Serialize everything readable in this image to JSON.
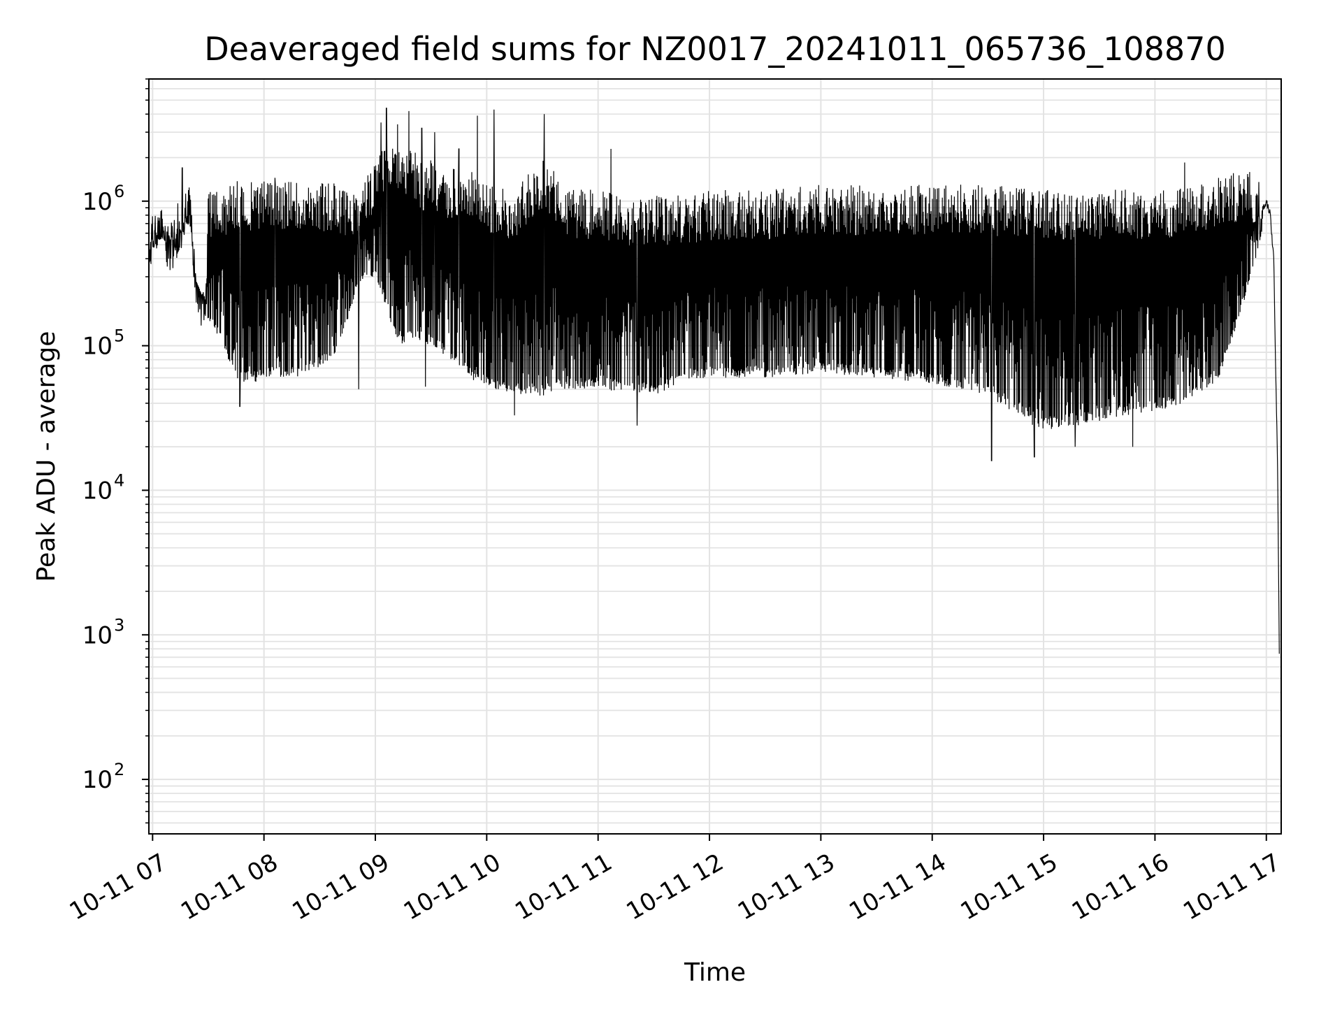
{
  "chart_data": {
    "type": "line",
    "title": "Deaveraged field sums for NZ0017_20241011_065736_108870",
    "xlabel": "Time",
    "ylabel": "Peak ADU - average",
    "yscale": "log",
    "ylim": [
      42,
      7000000
    ],
    "xlim": [
      "2024-10-11 06:58",
      "2024-10-11 17:08"
    ],
    "grid": true,
    "x_tick_labels": [
      "10-11 07",
      "10-11 08",
      "10-11 09",
      "10-11 10",
      "10-11 11",
      "10-11 12",
      "10-11 13",
      "10-11 14",
      "10-11 15",
      "10-11 16",
      "10-11 17"
    ],
    "x_ticks": [
      "2024-10-11 07:00",
      "2024-10-11 08:00",
      "2024-10-11 09:00",
      "2024-10-11 10:00",
      "2024-10-11 11:00",
      "2024-10-11 12:00",
      "2024-10-11 13:00",
      "2024-10-11 14:00",
      "2024-10-11 15:00",
      "2024-10-11 16:00",
      "2024-10-11 17:00"
    ],
    "y_ticks": [
      {
        "value": 100,
        "base": "10",
        "exp": "2"
      },
      {
        "value": 1000,
        "base": "10",
        "exp": "3"
      },
      {
        "value": 10000,
        "base": "10",
        "exp": "4"
      },
      {
        "value": 100000,
        "base": "10",
        "exp": "5"
      },
      {
        "value": 1000000,
        "base": "10",
        "exp": "6"
      }
    ],
    "line_color": "#000000",
    "grid_color": "#e3e3e3",
    "series": [
      {
        "x": [
          "2024-10-11 06:58",
          "2024-10-11 07:02",
          "2024-10-11 07:05",
          "2024-10-11 07:08",
          "2024-10-11 07:11",
          "2024-10-11 07:13",
          "2024-10-11 07:15",
          "2024-10-11 07:18",
          "2024-10-11 07:21",
          "2024-10-11 07:22",
          "2024-10-11 07:25",
          "2024-10-11 07:28",
          "2024-10-11 07:30",
          "2024-10-11 07:35",
          "2024-10-11 07:40",
          "2024-10-11 07:45",
          "2024-10-11 07:50",
          "2024-10-11 07:55",
          "2024-10-11 08:00",
          "2024-10-11 08:10",
          "2024-10-11 08:20",
          "2024-10-11 08:30",
          "2024-10-11 08:40",
          "2024-10-11 08:45",
          "2024-10-11 08:50",
          "2024-10-11 08:55",
          "2024-10-11 09:00",
          "2024-10-11 09:05",
          "2024-10-11 09:10",
          "2024-10-11 09:15",
          "2024-10-11 09:20",
          "2024-10-11 09:25",
          "2024-10-11 09:30",
          "2024-10-11 09:35",
          "2024-10-11 09:40",
          "2024-10-11 09:45",
          "2024-10-11 09:50",
          "2024-10-11 09:55",
          "2024-10-11 10:00",
          "2024-10-11 10:15",
          "2024-10-11 10:30",
          "2024-10-11 10:45",
          "2024-10-11 11:00",
          "2024-10-11 11:15",
          "2024-10-11 11:30",
          "2024-10-11 11:45",
          "2024-10-11 12:00",
          "2024-10-11 12:30",
          "2024-10-11 13:00",
          "2024-10-11 13:30",
          "2024-10-11 14:00",
          "2024-10-11 14:30",
          "2024-10-11 15:00",
          "2024-10-11 15:30",
          "2024-10-11 16:00",
          "2024-10-11 16:20",
          "2024-10-11 16:35",
          "2024-10-11 16:45",
          "2024-10-11 16:52",
          "2024-10-11 16:56",
          "2024-10-11 17:00",
          "2024-10-11 17:02",
          "2024-10-11 17:04",
          "2024-10-11 17:05",
          "2024-10-11 17:06",
          "2024-10-11 17:07"
        ],
        "env_high": [
          700000,
          900000,
          950000,
          750000,
          700000,
          1000000,
          1000000,
          1300000,
          1300000,
          600000,
          300000,
          250000,
          1200000,
          1400000,
          1300000,
          1400000,
          1350000,
          1400000,
          1450000,
          1400000,
          1400000,
          1350000,
          1350000,
          1200000,
          1300000,
          1500000,
          2000000,
          2500000,
          2500000,
          2000000,
          2500000,
          1800000,
          2000000,
          1800000,
          1600000,
          1800000,
          1700000,
          1500000,
          1300000,
          1200000,
          2000000,
          1200000,
          1200000,
          1100000,
          1100000,
          1100000,
          1200000,
          1200000,
          1300000,
          1300000,
          1300000,
          1300000,
          1200000,
          1200000,
          1200000,
          1300000,
          1500000,
          1600000,
          1600000,
          1400000,
          1200000,
          1000000,
          500000,
          100000,
          30000,
          6000
        ],
        "env_low": [
          450000,
          500000,
          550000,
          500000,
          550000,
          400000,
          500000,
          700000,
          650000,
          300000,
          250000,
          200000,
          150000,
          120000,
          80000,
          60000,
          55000,
          55000,
          60000,
          60000,
          60000,
          70000,
          90000,
          150000,
          250000,
          300000,
          300000,
          200000,
          120000,
          100000,
          110000,
          100000,
          100000,
          90000,
          80000,
          70000,
          60000,
          55000,
          50000,
          45000,
          45000,
          50000,
          50000,
          48000,
          45000,
          55000,
          60000,
          60000,
          65000,
          60000,
          55000,
          45000,
          25000,
          30000,
          35000,
          40000,
          60000,
          150000,
          300000,
          500000,
          800000,
          700000,
          300000,
          50000,
          10000,
          100
        ],
        "spikes": [
          {
            "x": "2024-10-11 07:16",
            "y": 1700000
          },
          {
            "x": "2024-10-11 08:06",
            "y": 1450000
          },
          {
            "x": "2024-10-11 09:03",
            "y": 3500000
          },
          {
            "x": "2024-10-11 09:06",
            "y": 4400000
          },
          {
            "x": "2024-10-11 09:12",
            "y": 3400000
          },
          {
            "x": "2024-10-11 09:18",
            "y": 4200000
          },
          {
            "x": "2024-10-11 09:25",
            "y": 3200000
          },
          {
            "x": "2024-10-11 09:32",
            "y": 3000000
          },
          {
            "x": "2024-10-11 09:45",
            "y": 2300000
          },
          {
            "x": "2024-10-11 09:55",
            "y": 3900000
          },
          {
            "x": "2024-10-11 10:04",
            "y": 4300000
          },
          {
            "x": "2024-10-11 10:31",
            "y": 4000000
          },
          {
            "x": "2024-10-11 11:07",
            "y": 2300000
          },
          {
            "x": "2024-10-11 16:16",
            "y": 1850000
          }
        ],
        "dips": [
          {
            "x": "2024-10-11 07:47",
            "y": 38000
          },
          {
            "x": "2024-10-11 08:51",
            "y": 50000
          },
          {
            "x": "2024-10-11 09:27",
            "y": 52000
          },
          {
            "x": "2024-10-11 10:15",
            "y": 33000
          },
          {
            "x": "2024-10-11 11:21",
            "y": 28000
          },
          {
            "x": "2024-10-11 14:32",
            "y": 16000
          },
          {
            "x": "2024-10-11 14:55",
            "y": 17000
          },
          {
            "x": "2024-10-11 15:17",
            "y": 20000
          },
          {
            "x": "2024-10-11 15:48",
            "y": 20000
          }
        ]
      }
    ]
  }
}
